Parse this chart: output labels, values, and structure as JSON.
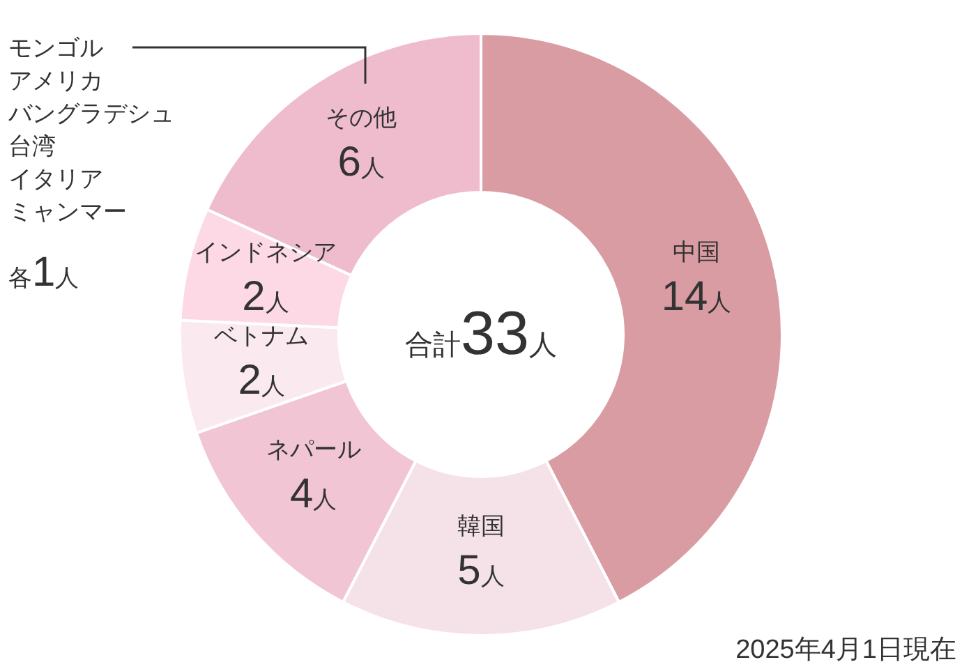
{
  "chart_data": {
    "type": "donut",
    "categories": [
      "中国",
      "韓国",
      "ネパール",
      "ベトナム",
      "インドネシア",
      "その他"
    ],
    "values": [
      14,
      5,
      4,
      2,
      2,
      6
    ],
    "value_labels": [
      "14人",
      "5人",
      "4人",
      "2人",
      "2人",
      "6人"
    ],
    "colors": [
      "#d99ca3",
      "#f5e1e8",
      "#f1c5d4",
      "#fbe9f0",
      "#fcd9e4",
      "#efbccd"
    ],
    "annotations": [
      "合計33人",
      "モンゴル",
      "アメリカ",
      "バングラデシュ",
      "台湾",
      "イタリア",
      "ミャンマー",
      "各1人",
      "2025年4月1日現在"
    ]
  }
}
